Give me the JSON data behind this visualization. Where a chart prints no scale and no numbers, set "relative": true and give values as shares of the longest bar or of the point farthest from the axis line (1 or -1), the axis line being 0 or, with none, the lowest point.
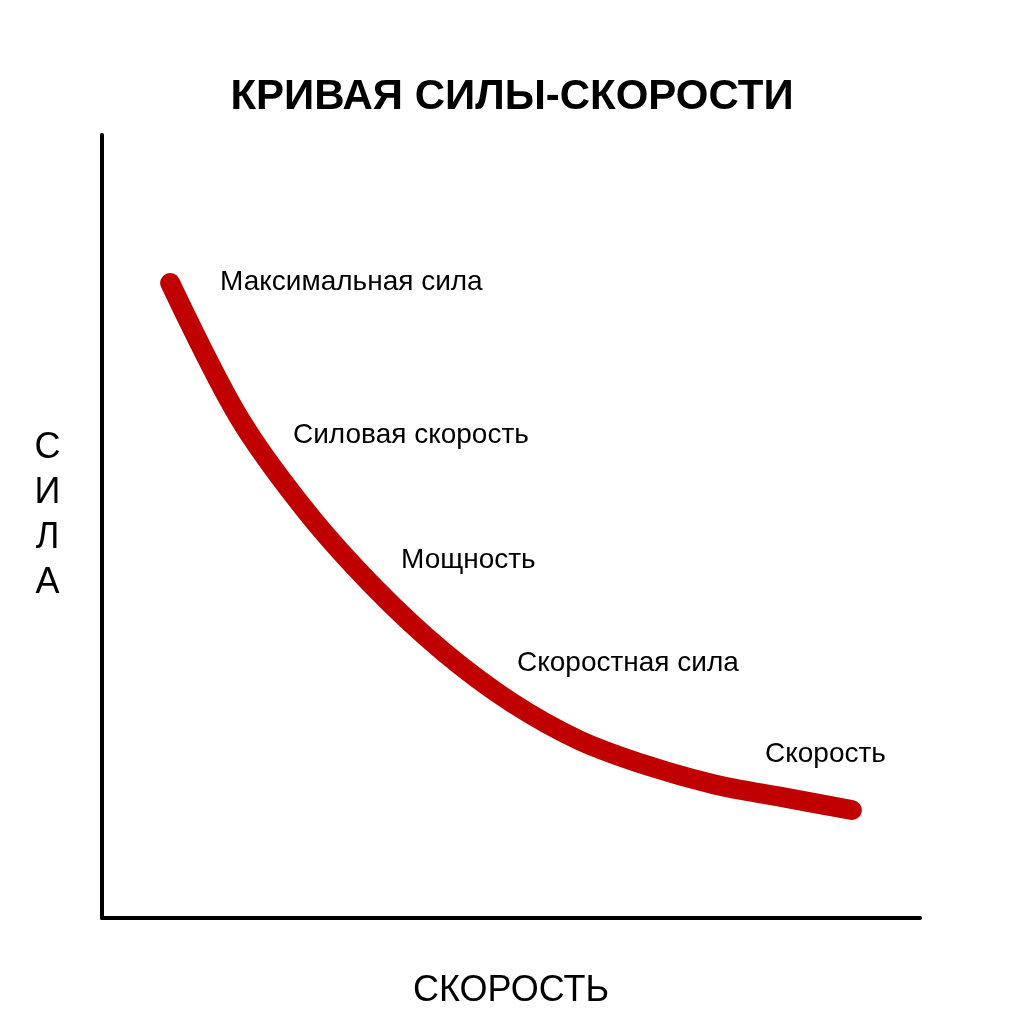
{
  "chart_data": {
    "type": "line",
    "title": "КРИВАЯ СИЛЫ-СКОРОСТИ",
    "xlabel": "СКОРОСТЬ",
    "ylabel": "СИЛА",
    "relative": true,
    "categories": [
      null,
      null,
      null,
      null,
      null,
      null,
      null,
      null,
      null,
      null,
      null,
      null,
      null
    ],
    "series": [
      {
        "color": "#c00000",
        "values": [
          null,
          1,
          0.79,
          0.64,
          0.52,
          0.42,
          0.34,
          0.28,
          0.24,
          0.21,
          0.19,
          0.17,
          null
        ]
      }
    ],
    "annotations": [
      "Максимальная сила",
      "Силовая скорость",
      "Мощность",
      "Скоростная сила",
      "Скорость"
    ],
    "line_style": "solid"
  }
}
